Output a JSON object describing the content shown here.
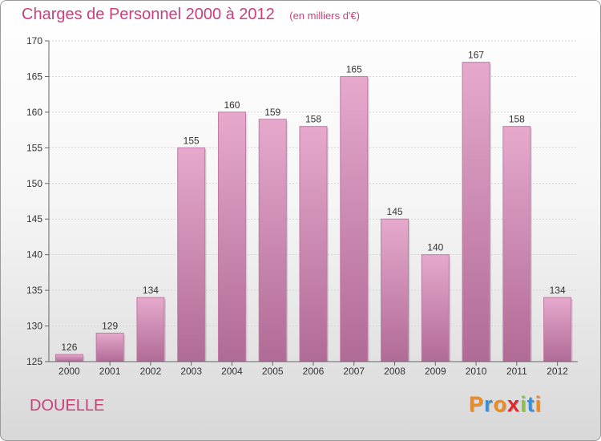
{
  "chart_data": {
    "type": "bar",
    "title": "Charges de Personnel 2000 à 2012",
    "subtitle": "(en milliers d'€)",
    "categories": [
      "2000",
      "2001",
      "2002",
      "2003",
      "2004",
      "2005",
      "2006",
      "2007",
      "2008",
      "2009",
      "2010",
      "2011",
      "2012"
    ],
    "values": [
      126,
      129,
      134,
      155,
      160,
      159,
      158,
      165,
      145,
      140,
      167,
      158,
      134
    ],
    "ylim": [
      125,
      170
    ],
    "yticks": [
      125,
      130,
      135,
      140,
      145,
      150,
      155,
      160,
      165,
      170
    ],
    "grid": true,
    "bar_color": "#d98fb8"
  },
  "commune": "DOUELLE",
  "logo": {
    "letters": [
      "P",
      "r",
      "o",
      "x",
      "i",
      "t",
      "i"
    ],
    "colors": [
      "#f08a1c",
      "#3a8fd6",
      "#f08a1c",
      "#e2262b",
      "#8cc63f",
      "#3a8fd6",
      "#f08a1c"
    ]
  }
}
